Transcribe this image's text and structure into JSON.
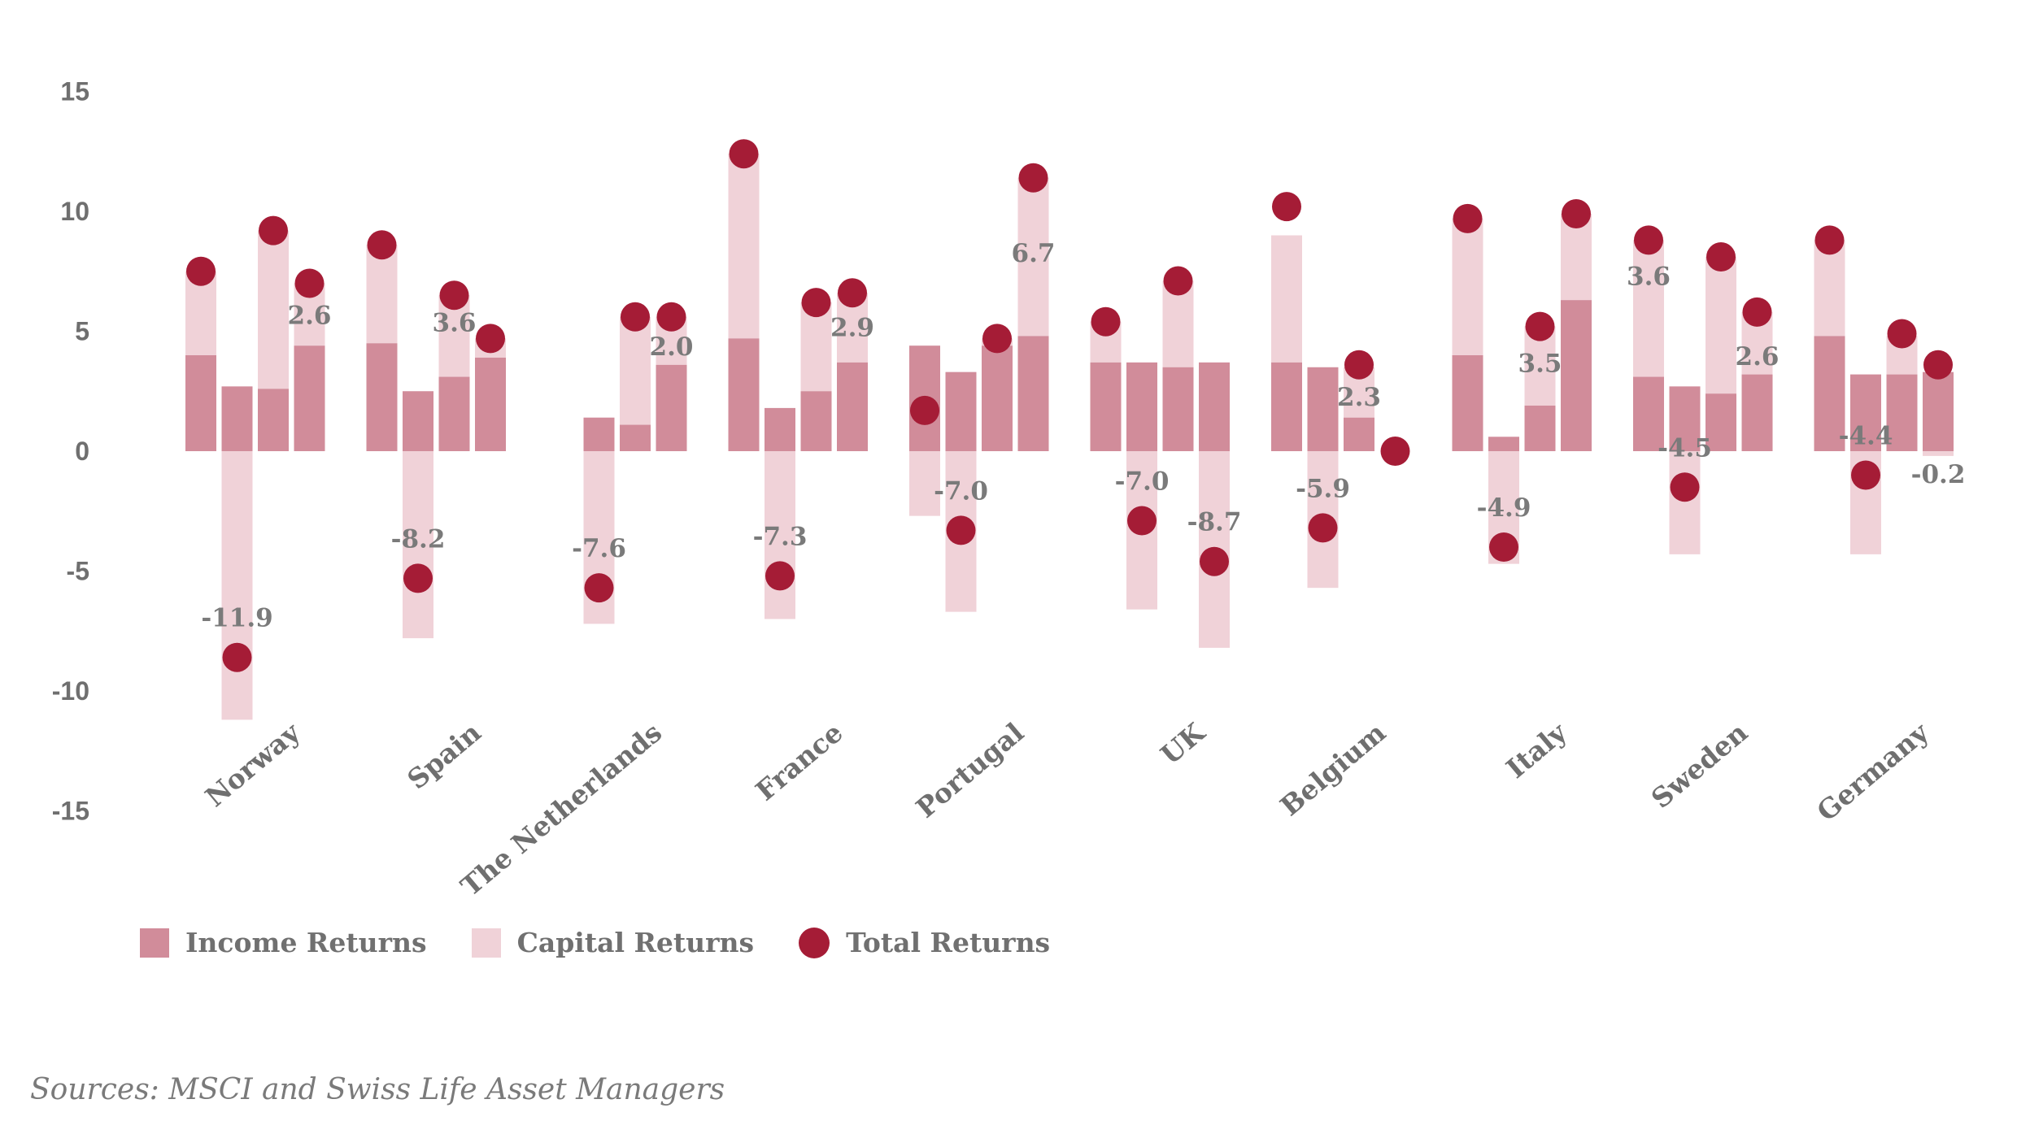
{
  "chart_data": {
    "type": "bar",
    "title": "",
    "xlabel": "",
    "ylabel": "",
    "ylim": [
      -15,
      15
    ],
    "yticks": [
      15,
      10,
      5,
      0,
      -5,
      -10,
      -15
    ],
    "countries": [
      "Norway",
      "Spain",
      "The Netherlands",
      "France",
      "Portugal",
      "UK",
      "Belgium",
      "Italy",
      "Sweden",
      "Germany"
    ],
    "series": [
      {
        "name": "Income Returns",
        "color": "#d18c9a"
      },
      {
        "name": "Capital Returns",
        "color": "#f0d2d8"
      },
      {
        "name": "Total Returns",
        "color": "#a51c36"
      }
    ],
    "groups": [
      {
        "country": "Norway",
        "bars": [
          {
            "income": 4.0,
            "capital": 3.5,
            "total": 7.5,
            "label": null
          },
          {
            "income": 2.7,
            "capital": -11.2,
            "total": -8.6,
            "label": "-11.9"
          },
          {
            "income": 2.6,
            "capital": 6.6,
            "total": 9.2,
            "label": null
          },
          {
            "income": 4.4,
            "capital": 2.6,
            "total": 7.0,
            "label": "2.6"
          }
        ]
      },
      {
        "country": "Spain",
        "bars": [
          {
            "income": 4.5,
            "capital": 4.1,
            "total": 8.6,
            "label": null
          },
          {
            "income": 2.5,
            "capital": -7.8,
            "total": -5.3,
            "label": "-8.2"
          },
          {
            "income": 3.1,
            "capital": 3.4,
            "total": 6.5,
            "label": "3.6"
          },
          {
            "income": 3.9,
            "capital": 0.8,
            "total": 4.7,
            "label": null
          }
        ]
      },
      {
        "country": "The Netherlands",
        "bars": [
          {
            "income": null,
            "capital": null,
            "total": null,
            "label": null
          },
          {
            "income": 1.4,
            "capital": -7.2,
            "total": -5.7,
            "label": "-7.6"
          },
          {
            "income": 1.1,
            "capital": 4.5,
            "total": 5.6,
            "label": null
          },
          {
            "income": 3.6,
            "capital": 2.0,
            "total": 5.6,
            "label": "2.0"
          }
        ]
      },
      {
        "country": "France",
        "bars": [
          {
            "income": 4.7,
            "capital": 7.7,
            "total": 12.4,
            "label": null
          },
          {
            "income": 1.8,
            "capital": -7.0,
            "total": -5.2,
            "label": "-7.3"
          },
          {
            "income": 2.5,
            "capital": 3.7,
            "total": 6.2,
            "label": null
          },
          {
            "income": 3.7,
            "capital": 2.9,
            "total": 6.6,
            "label": "2.9"
          }
        ]
      },
      {
        "country": "Portugal",
        "bars": [
          {
            "income": 4.4,
            "capital": -2.7,
            "total": 1.7,
            "label": null
          },
          {
            "income": 3.3,
            "capital": -6.7,
            "total": -3.3,
            "label": "-7.0"
          },
          {
            "income": 4.4,
            "capital": 0.3,
            "total": 4.7,
            "label": null
          },
          {
            "income": 4.8,
            "capital": 6.6,
            "total": 11.4,
            "label": "6.7"
          }
        ]
      },
      {
        "country": "UK",
        "bars": [
          {
            "income": 3.7,
            "capital": 1.7,
            "total": 5.4,
            "label": null
          },
          {
            "income": 3.7,
            "capital": -6.6,
            "total": -2.9,
            "label": "-7.0"
          },
          {
            "income": 3.5,
            "capital": 3.6,
            "total": 7.1,
            "label": null
          },
          {
            "income": 3.7,
            "capital": -8.2,
            "total": -4.6,
            "label": "-8.7"
          }
        ]
      },
      {
        "country": "Belgium",
        "bars": [
          {
            "income": 3.7,
            "capital": 5.3,
            "total": 10.2,
            "label": null
          },
          {
            "income": 3.5,
            "capital": -5.7,
            "total": -3.2,
            "label": "-5.9"
          },
          {
            "income": 1.4,
            "capital": 2.1,
            "total": 3.6,
            "label": "2.3"
          },
          {
            "income": null,
            "capital": null,
            "total": 0.0,
            "label": null
          }
        ]
      },
      {
        "country": "Italy",
        "bars": [
          {
            "income": 4.0,
            "capital": 5.7,
            "total": 9.7,
            "label": null
          },
          {
            "income": 0.6,
            "capital": -4.7,
            "total": -4.0,
            "label": "-4.9"
          },
          {
            "income": 1.9,
            "capital": 3.3,
            "total": 5.2,
            "label": "3.5"
          },
          {
            "income": 6.3,
            "capital": 3.6,
            "total": 9.9,
            "label": null
          }
        ]
      },
      {
        "country": "Sweden",
        "bars": [
          {
            "income": 3.1,
            "capital": 5.7,
            "total": 8.8,
            "label": "3.6"
          },
          {
            "income": 2.7,
            "capital": -4.3,
            "total": -1.5,
            "label": "-4.5"
          },
          {
            "income": 2.4,
            "capital": 5.7,
            "total": 8.1,
            "label": null
          },
          {
            "income": 3.2,
            "capital": 2.6,
            "total": 5.8,
            "label": "2.6"
          }
        ]
      },
      {
        "country": "Germany",
        "bars": [
          {
            "income": 4.8,
            "capital": 4.0,
            "total": 8.8,
            "label": null
          },
          {
            "income": 3.2,
            "capital": -4.3,
            "total": -1.0,
            "label": "-4.4"
          },
          {
            "income": 3.2,
            "capital": 1.6,
            "total": 4.9,
            "label": null
          },
          {
            "income": 3.3,
            "capital": -0.2,
            "total": 3.6,
            "label": "-0.2"
          }
        ]
      }
    ]
  },
  "legend": {
    "income_label": "Income Returns",
    "capital_label": "Capital Returns",
    "total_label": "Total Returns"
  },
  "source": "Sources: MSCI and Swiss Life Asset Managers"
}
